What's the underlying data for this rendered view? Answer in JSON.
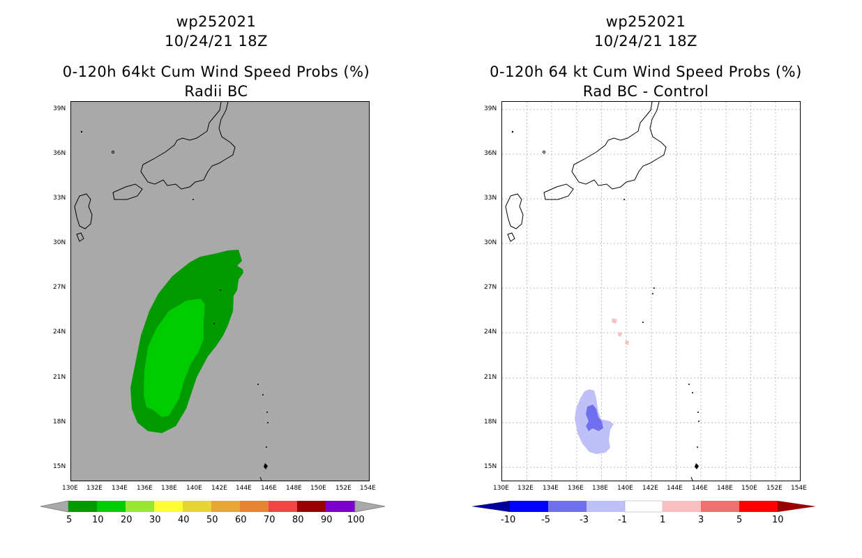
{
  "left_panel": {
    "title_line1": "wp252021",
    "title_line2": "10/24/21 18Z",
    "title_line3": "0-120h 64kt Cum Wind Speed Probs (%)",
    "title_line4": "Radii BC",
    "background_color": "#a9a9a9",
    "colorbar": {
      "labels": [
        "5",
        "10",
        "20",
        "30",
        "40",
        "50",
        "60",
        "70",
        "80",
        "90",
        "100"
      ],
      "colors": [
        "#009900",
        "#00cc00",
        "#99e633",
        "#ffff33",
        "#e6d633",
        "#e6a833",
        "#e68533",
        "#f04545",
        "#990000",
        "#7a00cc"
      ]
    }
  },
  "right_panel": {
    "title_line1": "wp252021",
    "title_line2": "10/24/21 18Z",
    "title_line3": "0-120h 64 kt Cum Wind Speed Probs (%)",
    "title_line4": "Rad BC - Control",
    "background_color": "#ffffff",
    "colorbar": {
      "labels": [
        "-10",
        "-5",
        "-3",
        "-1",
        "1",
        "3",
        "5",
        "10"
      ],
      "colors": [
        "#000099",
        "#0000ff",
        "#7070ee",
        "#c0c0f8",
        "#ffffff",
        "#f8c0c0",
        "#f07070",
        "#ff0000",
        "#990000"
      ]
    }
  },
  "lat_labels": [
    "39N",
    "36N",
    "33N",
    "30N",
    "27N",
    "24N",
    "21N",
    "18N",
    "15N"
  ],
  "lon_labels": [
    "130E",
    "132E",
    "134E",
    "136E",
    "138E",
    "140E",
    "142E",
    "144E",
    "146E",
    "148E",
    "150E",
    "152E",
    "154E"
  ]
}
